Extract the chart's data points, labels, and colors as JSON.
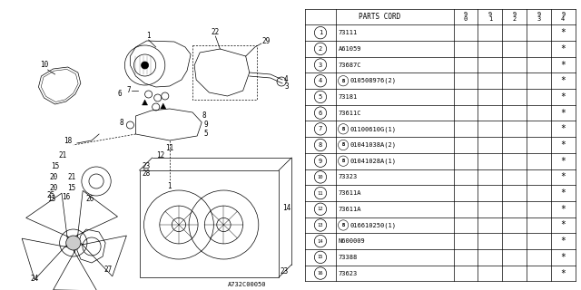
{
  "diagram_ref": "A732C00050",
  "parts": [
    {
      "num": 1,
      "code": "73111",
      "has_B": false
    },
    {
      "num": 2,
      "code": "A61059",
      "has_B": false
    },
    {
      "num": 3,
      "code": "73687C",
      "has_B": false
    },
    {
      "num": 4,
      "code": "010508976(2)",
      "has_B": true
    },
    {
      "num": 5,
      "code": "73181",
      "has_B": false
    },
    {
      "num": 6,
      "code": "73611C",
      "has_B": false
    },
    {
      "num": 7,
      "code": "01100610G(1)",
      "has_B": true
    },
    {
      "num": 8,
      "code": "01041038A(2)",
      "has_B": true
    },
    {
      "num": 9,
      "code": "01041028A(1)",
      "has_B": true
    },
    {
      "num": 10,
      "code": "73323",
      "has_B": false
    },
    {
      "num": 11,
      "code": "73611A",
      "has_B": false
    },
    {
      "num": 12,
      "code": "73611A",
      "has_B": false
    },
    {
      "num": 13,
      "code": "016610250(1)",
      "has_B": true
    },
    {
      "num": 14,
      "code": "N600009",
      "has_B": false
    },
    {
      "num": 15,
      "code": "73388",
      "has_B": false
    },
    {
      "num": 16,
      "code": "73623",
      "has_B": false
    }
  ],
  "years": [
    "9\n0",
    "9\n1",
    "9\n2",
    "9\n3",
    "9\n4"
  ],
  "bg_color": "#ffffff",
  "line_color": "#000000"
}
